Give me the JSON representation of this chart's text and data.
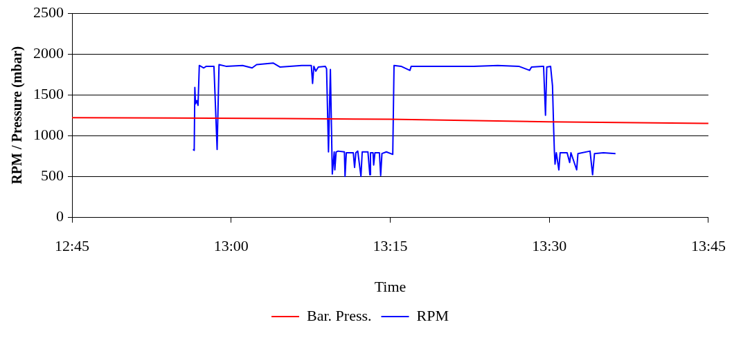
{
  "chart_data": {
    "type": "line",
    "xlabel": "Time",
    "ylabel": "RPM / Pressure (mbar)",
    "xlim": [
      12.75,
      13.75
    ],
    "xticks": [
      {
        "value": 12.75,
        "label": "12:45"
      },
      {
        "value": 13,
        "label": "13:00"
      },
      {
        "value": 13.25,
        "label": "13:15"
      },
      {
        "value": 13.5,
        "label": "13:30"
      },
      {
        "value": 13.75,
        "label": "13:45"
      }
    ],
    "ylim": [
      0,
      2500
    ],
    "yticks": [
      0,
      500,
      1000,
      1500,
      2000,
      2500
    ],
    "grid": "y",
    "legend": "bottom",
    "marker": "none",
    "line_style": "solid",
    "series": [
      {
        "name": "Bar. Press.",
        "color": "#ff0000",
        "x": [
          12.75,
          13.083,
          13.25,
          13.5,
          13.75
        ],
        "values": [
          1220,
          1210,
          1200,
          1170,
          1150
        ]
      },
      {
        "name": "RPM",
        "color": "#0000ff",
        "x": [
          12.94,
          12.942,
          12.943,
          12.944,
          12.946,
          12.948,
          12.95,
          12.957,
          12.961,
          12.973,
          12.978,
          12.981,
          12.992,
          13.018,
          13.033,
          13.04,
          13.066,
          13.077,
          13.111,
          13.126,
          13.128,
          13.13,
          13.133,
          13.137,
          13.148,
          13.15,
          13.153,
          13.156,
          13.159,
          13.162,
          13.163,
          13.165,
          13.168,
          13.178,
          13.179,
          13.181,
          13.192,
          13.194,
          13.196,
          13.199,
          13.204,
          13.206,
          13.215,
          13.218,
          13.219,
          13.223,
          13.224,
          13.226,
          13.233,
          13.235,
          13.237,
          13.244,
          13.254,
          13.256,
          13.267,
          13.281,
          13.283,
          13.311,
          13.337,
          13.381,
          13.419,
          13.452,
          13.469,
          13.472,
          13.489,
          13.491,
          13.494,
          13.496,
          13.502,
          13.505,
          13.507,
          13.508,
          13.509,
          13.511,
          13.515,
          13.517,
          13.528,
          13.532,
          13.534,
          13.543,
          13.545,
          13.564,
          13.568,
          13.571,
          13.585,
          13.604
        ],
        "values": [
          830,
          820,
          1590,
          1390,
          1430,
          1370,
          1860,
          1830,
          1850,
          1850,
          830,
          1870,
          1850,
          1860,
          1830,
          1870,
          1890,
          1840,
          1860,
          1860,
          1640,
          1850,
          1790,
          1840,
          1850,
          1820,
          800,
          1810,
          530,
          800,
          580,
          800,
          810,
          800,
          500,
          790,
          790,
          610,
          790,
          810,
          500,
          800,
          800,
          520,
          790,
          790,
          640,
          790,
          790,
          510,
          780,
          800,
          770,
          1860,
          1850,
          1800,
          1850,
          1850,
          1850,
          1850,
          1860,
          1850,
          1800,
          1840,
          1850,
          1850,
          1250,
          1840,
          1850,
          1610,
          1040,
          800,
          650,
          790,
          580,
          790,
          790,
          670,
          790,
          580,
          780,
          810,
          520,
          780,
          790,
          780
        ]
      }
    ]
  }
}
